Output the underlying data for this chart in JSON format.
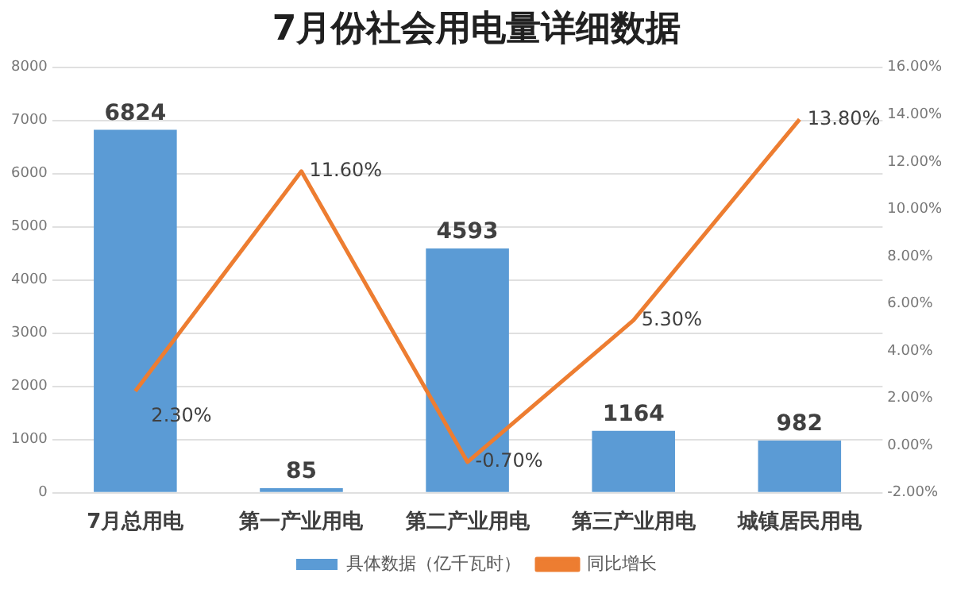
{
  "chart_data": {
    "type": "bar",
    "title": "7月份社会用电量详细数据",
    "categories": [
      "7月总用电",
      "第一产业用电",
      "第二产业用电",
      "第三产业用电",
      "城镇居民用电"
    ],
    "series": [
      {
        "name": "具体数据（亿千瓦时）",
        "color": "#5b9bd5",
        "values": [
          6824,
          85,
          4593,
          1164,
          982
        ],
        "value_labels": [
          "6824",
          "85",
          "4593",
          "1164",
          "982"
        ]
      },
      {
        "name": "同比增长",
        "type": "line",
        "axis": "y2",
        "color": "#ed7d31",
        "values": [
          2.3,
          11.6,
          -0.7,
          5.3,
          13.8
        ],
        "value_labels": [
          "2.30%",
          "11.60%",
          "-0.70%",
          "5.30%",
          "13.80%"
        ]
      }
    ],
    "ylim": [
      0,
      8000
    ],
    "yticks": [
      0,
      1000,
      2000,
      3000,
      4000,
      5000,
      6000,
      7000,
      8000
    ],
    "y2lim": [
      -2,
      16
    ],
    "y2ticks": [
      {
        "value": -2,
        "label": "-2.00%"
      },
      {
        "value": 0,
        "label": "0.00%"
      },
      {
        "value": 2,
        "label": "2.00%"
      },
      {
        "value": 4,
        "label": "4.00%"
      },
      {
        "value": 6,
        "label": "6.00%"
      },
      {
        "value": 8,
        "label": "8.00%"
      },
      {
        "value": 10,
        "label": "10.00%"
      },
      {
        "value": 12,
        "label": "12.00%"
      },
      {
        "value": 14,
        "label": "14.00%"
      },
      {
        "value": 16,
        "label": "16.00%"
      }
    ],
    "grid": "y",
    "legend": "bottom",
    "marker": "none",
    "line_style": "solid"
  }
}
